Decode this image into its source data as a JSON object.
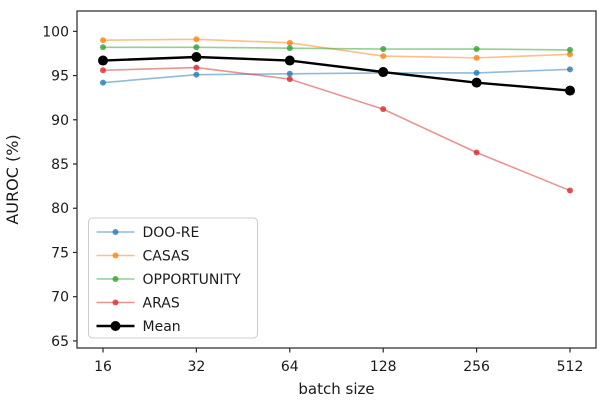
{
  "figure": {
    "description": "Line chart of AUROC (%) versus batch size for four datasets and their mean"
  },
  "chart_data": {
    "type": "line",
    "title": "",
    "xlabel": "batch size",
    "ylabel": "AUROC (%)",
    "x_scale": "log2",
    "categories": [
      "16",
      "32",
      "64",
      "128",
      "256",
      "512"
    ],
    "yticks": [
      100,
      95,
      90,
      85,
      80,
      75,
      70,
      65
    ],
    "ylim": [
      65,
      100
    ],
    "grid": false,
    "legend_position": "lower left",
    "axis_color": "#262626",
    "series": [
      {
        "name": "DOO-RE",
        "color": "#1f77b4",
        "line_opacity": 0.5,
        "marker_opacity": 0.78,
        "line_width": 1.6,
        "marker_radius": 3,
        "values": [
          94.2,
          95.1,
          95.2,
          95.3,
          95.3,
          95.7
        ]
      },
      {
        "name": "CASAS",
        "color": "#ff7f0e",
        "line_opacity": 0.5,
        "marker_opacity": 0.78,
        "line_width": 1.6,
        "marker_radius": 3,
        "values": [
          99.0,
          99.1,
          98.7,
          97.2,
          97.0,
          97.4
        ]
      },
      {
        "name": "OPPORTUNITY",
        "color": "#2ca02c",
        "line_opacity": 0.5,
        "marker_opacity": 0.78,
        "line_width": 1.6,
        "marker_radius": 3,
        "values": [
          98.2,
          98.2,
          98.1,
          98.0,
          98.0,
          97.9
        ]
      },
      {
        "name": "ARAS",
        "color": "#d62728",
        "line_opacity": 0.5,
        "marker_opacity": 0.78,
        "line_width": 1.6,
        "marker_radius": 3,
        "values": [
          95.6,
          95.9,
          94.6,
          91.2,
          86.3,
          82.0
        ]
      },
      {
        "name": "Mean",
        "color": "#000000",
        "line_opacity": 1.0,
        "marker_opacity": 1.0,
        "line_width": 2.4,
        "marker_radius": 5,
        "values": [
          96.7,
          97.1,
          96.7,
          95.4,
          94.2,
          93.3
        ]
      }
    ]
  }
}
